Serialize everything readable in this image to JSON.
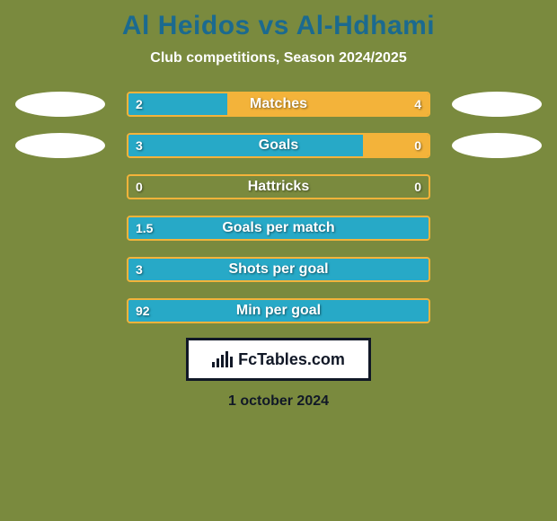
{
  "background_color": "#7a8a3e",
  "title": "Al Heidos vs Al-Hdhami",
  "title_color": "#1b6a8f",
  "title_fontsize": 30,
  "subtitle": "Club competitions, Season 2024/2025",
  "subtitle_color": "#ffffff",
  "subtitle_fontsize": 16,
  "player_left_color": "#27a9c7",
  "player_right_color": "#f3b33a",
  "bar_border_color": "#f3b33a",
  "bar_text_color": "#ffffff",
  "bar_label_fontsize": 16,
  "bar_value_fontsize": 14,
  "ellipse_color": "#ffffff",
  "rows": [
    {
      "label": "Matches",
      "left_value": "2",
      "right_value": "4",
      "left_width_pct": 33,
      "right_width_pct": 67,
      "show_left_ellipse": true,
      "show_right_ellipse": true
    },
    {
      "label": "Goals",
      "left_value": "3",
      "right_value": "0",
      "left_width_pct": 78,
      "right_width_pct": 22,
      "show_left_ellipse": true,
      "show_right_ellipse": true
    },
    {
      "label": "Hattricks",
      "left_value": "0",
      "right_value": "0",
      "left_width_pct": 0,
      "right_width_pct": 0,
      "show_left_ellipse": false,
      "show_right_ellipse": false
    },
    {
      "label": "Goals per match",
      "left_value": "1.5",
      "right_value": "",
      "left_width_pct": 100,
      "right_width_pct": 0,
      "show_left_ellipse": false,
      "show_right_ellipse": false
    },
    {
      "label": "Shots per goal",
      "left_value": "3",
      "right_value": "",
      "left_width_pct": 100,
      "right_width_pct": 0,
      "show_left_ellipse": false,
      "show_right_ellipse": false
    },
    {
      "label": "Min per goal",
      "left_value": "92",
      "right_value": "",
      "left_width_pct": 100,
      "right_width_pct": 0,
      "show_left_ellipse": false,
      "show_right_ellipse": false
    }
  ],
  "logo_text": "FcTables.com",
  "logo_bar_heights": [
    6,
    10,
    14,
    18,
    12
  ],
  "date": "1 october 2024",
  "date_color": "#111827",
  "date_fontsize": 16
}
